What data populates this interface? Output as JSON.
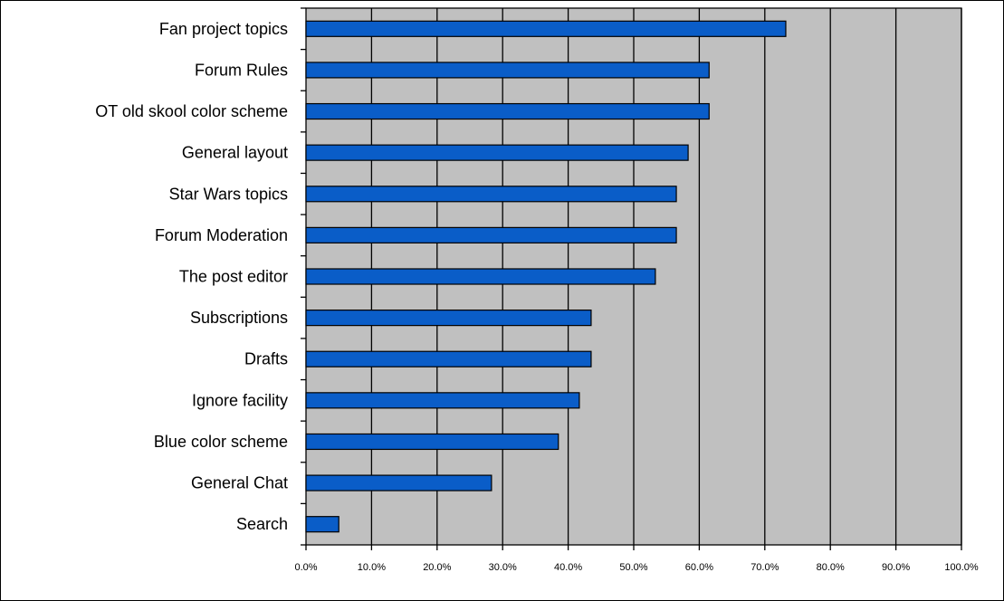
{
  "chart_data": {
    "type": "bar",
    "orientation": "horizontal",
    "categories": [
      "Fan project topics",
      "Forum Rules",
      "OT old skool color scheme",
      "General layout",
      "Star Wars topics",
      "Forum Moderation",
      "The post editor",
      "Subscriptions",
      "Drafts",
      "Ignore facility",
      "Blue color scheme",
      "General Chat",
      "Search"
    ],
    "values": [
      73.2,
      61.5,
      61.5,
      58.3,
      56.5,
      56.5,
      53.3,
      43.5,
      43.5,
      41.7,
      38.5,
      28.3,
      5.0
    ],
    "xlim": [
      0,
      100
    ],
    "x_ticks": [
      "0.0%",
      "10.0%",
      "20.0%",
      "30.0%",
      "40.0%",
      "50.0%",
      "60.0%",
      "70.0%",
      "80.0%",
      "90.0%",
      "100.0%"
    ],
    "grid": "vertical",
    "title": "",
    "xlabel": "",
    "ylabel": "",
    "colors": {
      "bar": "#0a5dc8",
      "bar_stroke": "#000000",
      "plot_background": "#c0c0c0",
      "grid": "#000000"
    }
  }
}
